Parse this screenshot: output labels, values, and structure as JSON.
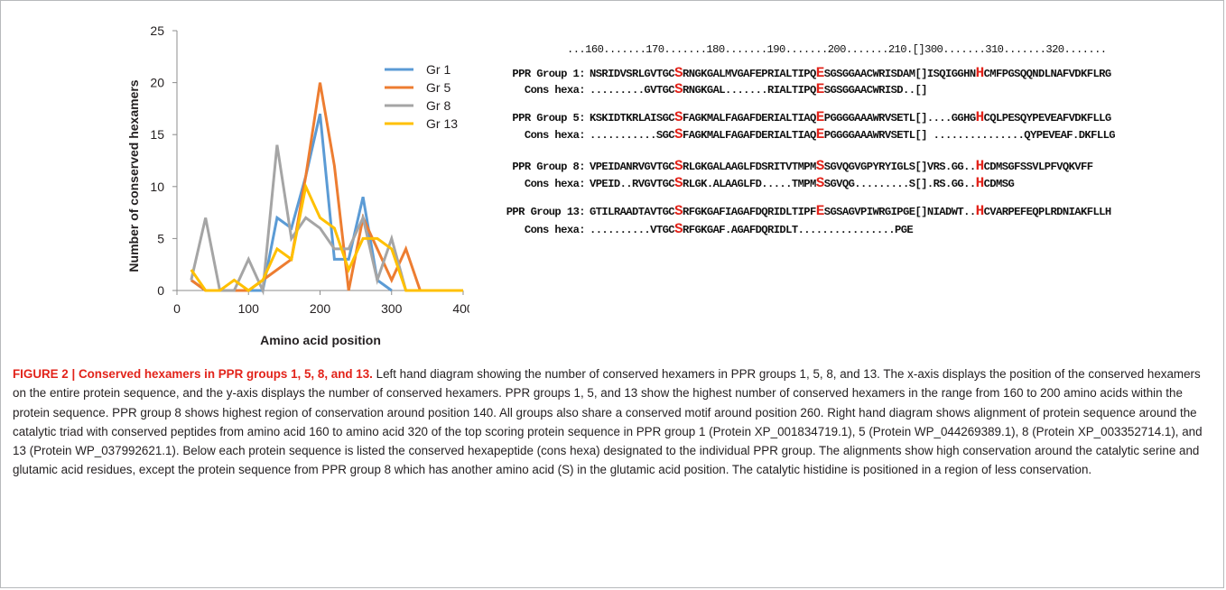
{
  "chart_data": {
    "type": "line",
    "title": "",
    "xlabel": "Amino acid position",
    "ylabel": "Number of conserved hexamers",
    "xlim": [
      0,
      400
    ],
    "ylim": [
      0,
      25
    ],
    "x_ticks": [
      "0",
      "100",
      "200",
      "300",
      "400"
    ],
    "y_ticks": [
      "0",
      "5",
      "10",
      "15",
      "20",
      "25"
    ],
    "grid": false,
    "legend_position": "right",
    "series": [
      {
        "name": "Gr 1",
        "color": "#5b9bd5",
        "points": [
          [
            20,
            1
          ],
          [
            40,
            0
          ],
          [
            60,
            0
          ],
          [
            80,
            0
          ],
          [
            100,
            0
          ],
          [
            120,
            0
          ],
          [
            140,
            7
          ],
          [
            160,
            6
          ],
          [
            180,
            11
          ],
          [
            200,
            17
          ],
          [
            220,
            3
          ],
          [
            240,
            3
          ],
          [
            260,
            9
          ],
          [
            280,
            1
          ],
          [
            300,
            0
          ]
        ]
      },
      {
        "name": "Gr 5",
        "color": "#ed7d31",
        "points": [
          [
            20,
            1
          ],
          [
            40,
            0
          ],
          [
            60,
            0
          ],
          [
            80,
            0
          ],
          [
            100,
            0
          ],
          [
            120,
            1
          ],
          [
            140,
            2
          ],
          [
            160,
            3
          ],
          [
            180,
            11
          ],
          [
            200,
            20
          ],
          [
            220,
            12
          ],
          [
            240,
            0
          ],
          [
            260,
            7
          ],
          [
            280,
            4
          ],
          [
            300,
            1
          ],
          [
            320,
            4
          ],
          [
            340,
            0
          ],
          [
            360,
            0
          ],
          [
            380,
            0
          ],
          [
            400,
            0
          ]
        ]
      },
      {
        "name": "Gr 8",
        "color": "#a5a5a5",
        "points": [
          [
            20,
            1
          ],
          [
            40,
            7
          ],
          [
            60,
            0
          ],
          [
            80,
            0
          ],
          [
            100,
            3
          ],
          [
            120,
            0
          ],
          [
            140,
            14
          ],
          [
            160,
            5
          ],
          [
            180,
            7
          ],
          [
            200,
            6
          ],
          [
            220,
            4
          ],
          [
            240,
            4
          ],
          [
            260,
            7
          ],
          [
            280,
            1
          ],
          [
            300,
            5
          ],
          [
            320,
            0
          ]
        ]
      },
      {
        "name": "Gr 13",
        "color": "#ffc000",
        "points": [
          [
            20,
            2
          ],
          [
            40,
            0
          ],
          [
            60,
            0
          ],
          [
            80,
            1
          ],
          [
            100,
            0
          ],
          [
            120,
            1
          ],
          [
            140,
            4
          ],
          [
            160,
            3
          ],
          [
            180,
            10
          ],
          [
            200,
            7
          ],
          [
            220,
            6
          ],
          [
            240,
            2
          ],
          [
            260,
            5
          ],
          [
            280,
            5
          ],
          [
            300,
            4
          ],
          [
            320,
            0
          ],
          [
            340,
            0
          ],
          [
            360,
            0
          ],
          [
            380,
            0
          ],
          [
            400,
            0
          ]
        ]
      }
    ]
  },
  "alignment": {
    "ruler": "...160.......170.......180.......190.......200.......210.[]300.......310.......320.......",
    "rows": [
      {
        "label": "PPR Group 1:",
        "pre": "NSRIDVSRLGVTGC",
        "res1": "S",
        "mid": "RNGKGALMVGAFEPRIALTIPQ",
        "res2": "E",
        "mid2": "SGSGGAACWRISDAM[]ISQIGGHN",
        "res3": "H",
        "post": "CMFPGSQQNDLNAFVDKFLRG"
      },
      {
        "label": "Cons hexa:",
        "pre": ".........GVTGC",
        "res1": "S",
        "mid": "RNGKGAL.......RIALTIPQ",
        "res2": "E",
        "mid2": "SGSGGAACWRISD..[]",
        "res3": "",
        "post": ""
      },
      {
        "label": "PPR Group 5:",
        "pre": "KSKIDTKRLAISGC",
        "res1": "S",
        "mid": "FAGKMALFAGAFDERIALTIAQ",
        "res2": "E",
        "mid2": "PGGGGAAAWRVSETL[]....GGHG",
        "res3": "H",
        "post": "CQLPESQYPEVEAFVDKFLLG"
      },
      {
        "label": "Cons hexa:",
        "pre": "...........SGC",
        "res1": "S",
        "mid": "FAGKMALFAGAFDERIALTIAQ",
        "res2": "E",
        "mid2": "PGGGGAAAWRVSETL[] ...............",
        "res3": "",
        "post": "QYPEVEAF.DKFLLG"
      },
      {
        "label": "PPR Group 8:",
        "pre": "VPEIDANRVGVTGC",
        "res1": "S",
        "mid": "RLGKGALAAGLFDSRITVTMPM",
        "res2": "S",
        "mid2": "SGVQGVGPYRYIGLS[]VRS.GG..",
        "res3": "H",
        "post": "CDMSGFSSVLPFVQKVFF"
      },
      {
        "label": "Cons hexa:",
        "pre": "VPEID..RVGVTGC",
        "res1": "S",
        "mid": "RLGK.ALAAGLFD.....TMPM",
        "res2": "S",
        "mid2": "SGVQG.........S[].RS.GG..",
        "res3": "H",
        "post": "CDMSG"
      },
      {
        "label": "PPR Group 13:",
        "pre": "GTILRAADTAVTGC",
        "res1": "S",
        "mid": "RFGKGAFIAGAFDQRIDLTIPF",
        "res2": "E",
        "mid2": "SGSAGVPIWRGIPGE[]NIADWT..",
        "res3": "H",
        "post": "CVARPEFEQPLRDNIAKFLLH"
      },
      {
        "label": "Cons hexa:",
        "pre": "..........VTGC",
        "res1": "S",
        "mid": "RFGKGAF.AGAFDQRIDLT...",
        "res2": "",
        "mid2": ".............PGE",
        "res3": "",
        "post": ""
      }
    ]
  },
  "caption": {
    "title": "FIGURE 2 | Conserved hexamers in PPR groups 1, 5, 8, and 13.",
    "text": " Left hand diagram showing the number of conserved hexamers in PPR groups 1, 5, 8, and 13. The x-axis displays the position of the conserved hexamers on the entire protein sequence, and the y-axis displays the number of conserved hexamers. PPR groups 1, 5, and 13 show the highest number of conserved hexamers in the range from 160 to 200 amino acids within the protein sequence. PPR group 8 shows highest region of conservation around position 140. All groups also share a conserved motif around position 260. Right hand diagram shows alignment of protein sequence around the catalytic triad with conserved peptides from amino acid 160 to amino acid 320 of the top scoring protein sequence in PPR group 1 (Protein XP_001834719.1), 5 (Protein WP_044269389.1), 8 (Protein XP_003352714.1), and 13 (Protein WP_037992621.1). Below each protein sequence is listed the conserved hexapeptide (cons hexa) designated to the individual PPR group. The alignments show high conservation around the catalytic serine and glutamic acid residues, except the protein sequence from PPR group 8 which has another amino acid (S) in the glutamic acid position. The catalytic histidine is positioned in a region of less conservation."
  }
}
